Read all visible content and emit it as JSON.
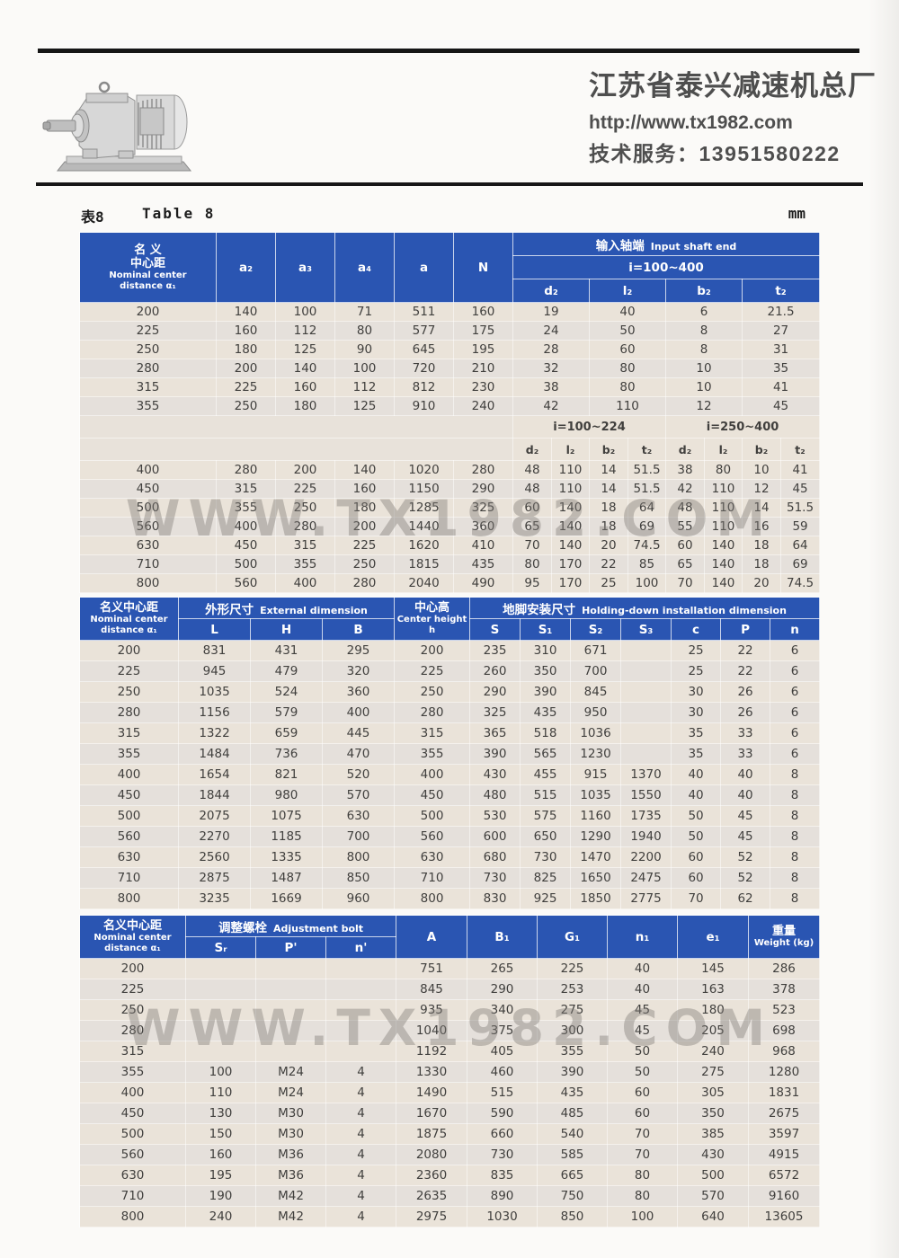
{
  "header": {
    "company": "江苏省泰兴减速机总厂",
    "website": "http://www.tx1982.com",
    "service": "技术服务：13951580222",
    "logo_icon": "gear-reducer-photo"
  },
  "caption": {
    "label_cn": "表8",
    "label_en": "Table 8",
    "unit": "mm"
  },
  "watermark": "WWW.TX1982.COM",
  "colors": {
    "header_blue": "#2a55b2",
    "row_beige": "#eae3d9",
    "row_gray": "#e5e0db",
    "rule_black": "#161616"
  },
  "tables": {
    "table1": {
      "name_header": {
        "cn": [
          "名 义",
          "中心距"
        ],
        "en": [
          "Nominal center",
          "distance α₁"
        ]
      },
      "col_headers": [
        "a₂",
        "a₃",
        "a₄",
        "a",
        "N"
      ],
      "group_header": {
        "cn": "输入轴端",
        "en": "Input shaft end"
      },
      "range_top": "i=100~400",
      "sub_headers_top": [
        "d₂",
        "l₂",
        "b₂",
        "t₂"
      ],
      "rows_top": [
        [
          "200",
          "140",
          "100",
          "71",
          "511",
          "160",
          "19",
          "40",
          "6",
          "21.5"
        ],
        [
          "225",
          "160",
          "112",
          "80",
          "577",
          "175",
          "24",
          "50",
          "8",
          "27"
        ],
        [
          "250",
          "180",
          "125",
          "90",
          "645",
          "195",
          "28",
          "60",
          "8",
          "31"
        ],
        [
          "280",
          "200",
          "140",
          "100",
          "720",
          "210",
          "32",
          "80",
          "10",
          "35"
        ],
        [
          "315",
          "225",
          "160",
          "112",
          "812",
          "230",
          "38",
          "80",
          "10",
          "41"
        ],
        [
          "355",
          "250",
          "180",
          "125",
          "910",
          "240",
          "42",
          "110",
          "12",
          "45"
        ]
      ],
      "mid_ranges": [
        "i=100~224",
        "i=250~400"
      ],
      "sub_headers_mid": [
        "d₂",
        "l₂",
        "b₂",
        "t₂",
        "d₂",
        "l₂",
        "b₂",
        "t₂"
      ],
      "rows_bottom": [
        [
          "400",
          "280",
          "200",
          "140",
          "1020",
          "280",
          "48",
          "110",
          "14",
          "51.5",
          "38",
          "80",
          "10",
          "41"
        ],
        [
          "450",
          "315",
          "225",
          "160",
          "1150",
          "290",
          "48",
          "110",
          "14",
          "51.5",
          "42",
          "110",
          "12",
          "45"
        ],
        [
          "500",
          "355",
          "250",
          "180",
          "1285",
          "325",
          "60",
          "140",
          "18",
          "64",
          "48",
          "110",
          "14",
          "51.5"
        ],
        [
          "560",
          "400",
          "280",
          "200",
          "1440",
          "360",
          "65",
          "140",
          "18",
          "69",
          "55",
          "110",
          "16",
          "59"
        ],
        [
          "630",
          "450",
          "315",
          "225",
          "1620",
          "410",
          "70",
          "140",
          "20",
          "74.5",
          "60",
          "140",
          "18",
          "64"
        ],
        [
          "710",
          "500",
          "355",
          "250",
          "1815",
          "435",
          "80",
          "170",
          "22",
          "85",
          "65",
          "140",
          "18",
          "69"
        ],
        [
          "800",
          "560",
          "400",
          "280",
          "2040",
          "490",
          "95",
          "170",
          "25",
          "100",
          "70",
          "140",
          "20",
          "74.5"
        ]
      ]
    },
    "table2": {
      "name_header": {
        "cn": [
          "名义中心距"
        ],
        "en": [
          "Nominal center",
          "distance α₁"
        ]
      },
      "group1": {
        "cn": "外形尺寸",
        "en": "External dimension",
        "cols": [
          "L",
          "H",
          "B"
        ]
      },
      "center_height": {
        "cn": "中心高",
        "en": "Center height",
        "sub": "h"
      },
      "group2": {
        "cn": "地脚安装尺寸",
        "en": "Holding-down installation dimension",
        "cols": [
          "S",
          "S₁",
          "S₂",
          "S₃",
          "c",
          "P",
          "n"
        ]
      },
      "rows": [
        [
          "200",
          "831",
          "431",
          "295",
          "200",
          "235",
          "310",
          "671",
          "",
          "25",
          "22",
          "6"
        ],
        [
          "225",
          "945",
          "479",
          "320",
          "225",
          "260",
          "350",
          "700",
          "",
          "25",
          "22",
          "6"
        ],
        [
          "250",
          "1035",
          "524",
          "360",
          "250",
          "290",
          "390",
          "845",
          "",
          "30",
          "26",
          "6"
        ],
        [
          "280",
          "1156",
          "579",
          "400",
          "280",
          "325",
          "435",
          "950",
          "",
          "30",
          "26",
          "6"
        ],
        [
          "315",
          "1322",
          "659",
          "445",
          "315",
          "365",
          "518",
          "1036",
          "",
          "35",
          "33",
          "6"
        ],
        [
          "355",
          "1484",
          "736",
          "470",
          "355",
          "390",
          "565",
          "1230",
          "",
          "35",
          "33",
          "6"
        ],
        [
          "400",
          "1654",
          "821",
          "520",
          "400",
          "430",
          "455",
          "915",
          "1370",
          "40",
          "40",
          "8"
        ],
        [
          "450",
          "1844",
          "980",
          "570",
          "450",
          "480",
          "515",
          "1035",
          "1550",
          "40",
          "40",
          "8"
        ],
        [
          "500",
          "2075",
          "1075",
          "630",
          "500",
          "530",
          "575",
          "1160",
          "1735",
          "50",
          "45",
          "8"
        ],
        [
          "560",
          "2270",
          "1185",
          "700",
          "560",
          "600",
          "650",
          "1290",
          "1940",
          "50",
          "45",
          "8"
        ],
        [
          "630",
          "2560",
          "1335",
          "800",
          "630",
          "680",
          "730",
          "1470",
          "2200",
          "60",
          "52",
          "8"
        ],
        [
          "710",
          "2875",
          "1487",
          "850",
          "710",
          "730",
          "825",
          "1650",
          "2475",
          "60",
          "52",
          "8"
        ],
        [
          "800",
          "3235",
          "1669",
          "960",
          "800",
          "830",
          "925",
          "1850",
          "2775",
          "70",
          "62",
          "8"
        ]
      ]
    },
    "table3": {
      "name_header": {
        "cn": [
          "名义中心距"
        ],
        "en": [
          "Nominal center",
          "distance α₁"
        ]
      },
      "group1": {
        "cn": "调整螺栓",
        "en": "Adjustment bolt",
        "cols": [
          "Sᵣ",
          "P'",
          "n'"
        ]
      },
      "col_headers": [
        "A",
        "B₁",
        "G₁",
        "n₁",
        "e₁"
      ],
      "weight_header": {
        "cn": "重量",
        "en": "Weight (kg)"
      },
      "rows": [
        [
          "200",
          "",
          "",
          "",
          "751",
          "265",
          "225",
          "40",
          "145",
          "286"
        ],
        [
          "225",
          "",
          "",
          "",
          "845",
          "290",
          "253",
          "40",
          "163",
          "378"
        ],
        [
          "250",
          "",
          "",
          "",
          "935",
          "340",
          "275",
          "45",
          "180",
          "523"
        ],
        [
          "280",
          "",
          "",
          "",
          "1040",
          "375",
          "300",
          "45",
          "205",
          "698"
        ],
        [
          "315",
          "",
          "",
          "",
          "1192",
          "405",
          "355",
          "50",
          "240",
          "968"
        ],
        [
          "355",
          "100",
          "M24",
          "4",
          "1330",
          "460",
          "390",
          "50",
          "275",
          "1280"
        ],
        [
          "400",
          "110",
          "M24",
          "4",
          "1490",
          "515",
          "435",
          "60",
          "305",
          "1831"
        ],
        [
          "450",
          "130",
          "M30",
          "4",
          "1670",
          "590",
          "485",
          "60",
          "350",
          "2675"
        ],
        [
          "500",
          "150",
          "M30",
          "4",
          "1875",
          "660",
          "540",
          "70",
          "385",
          "3597"
        ],
        [
          "560",
          "160",
          "M36",
          "4",
          "2080",
          "730",
          "585",
          "70",
          "430",
          "4915"
        ],
        [
          "630",
          "195",
          "M36",
          "4",
          "2360",
          "835",
          "665",
          "80",
          "500",
          "6572"
        ],
        [
          "710",
          "190",
          "M42",
          "4",
          "2635",
          "890",
          "750",
          "80",
          "570",
          "9160"
        ],
        [
          "800",
          "240",
          "M42",
          "4",
          "2975",
          "1030",
          "850",
          "100",
          "640",
          "13605"
        ]
      ]
    }
  }
}
